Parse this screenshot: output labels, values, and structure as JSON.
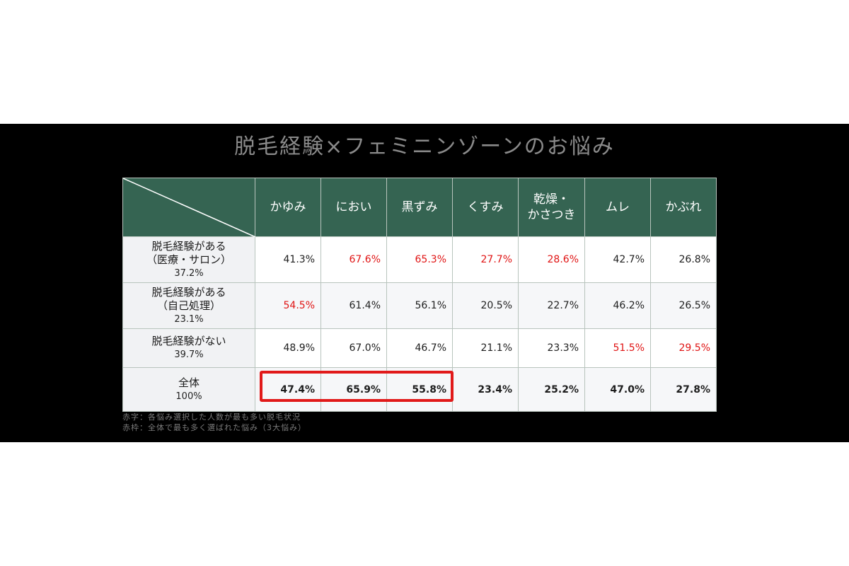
{
  "chart_data": {
    "type": "table",
    "title": "脱毛経験×フェミニンゾーンのお悩み",
    "columns": [
      "かゆみ",
      "におい",
      "黒ずみ",
      "くすみ",
      "乾燥・\nかさつき",
      "ムレ",
      "かぶれ"
    ],
    "rows": [
      {
        "label_lines": [
          "脱毛経験がある",
          "（医療・サロン）"
        ],
        "share": "37.2%",
        "values": [
          "41.3%",
          "67.6%",
          "65.3%",
          "27.7%",
          "28.6%",
          "42.7%",
          "26.8%"
        ],
        "highlight": [
          false,
          true,
          true,
          true,
          true,
          false,
          false
        ]
      },
      {
        "label_lines": [
          "脱毛経験がある",
          "（自己処理）"
        ],
        "share": "23.1%",
        "values": [
          "54.5%",
          "61.4%",
          "56.1%",
          "20.5%",
          "22.7%",
          "46.2%",
          "26.5%"
        ],
        "highlight": [
          true,
          false,
          false,
          false,
          false,
          false,
          false
        ]
      },
      {
        "label_lines": [
          "脱毛経験がない"
        ],
        "share": "39.7%",
        "values": [
          "48.9%",
          "67.0%",
          "46.7%",
          "21.1%",
          "23.3%",
          "51.5%",
          "29.5%"
        ],
        "highlight": [
          false,
          false,
          false,
          false,
          false,
          true,
          true
        ]
      },
      {
        "label_lines": [
          "全体"
        ],
        "share": "100%",
        "values": [
          "47.4%",
          "65.9%",
          "55.8%",
          "23.4%",
          "25.2%",
          "47.0%",
          "27.8%"
        ],
        "highlight": [
          false,
          false,
          false,
          false,
          false,
          false,
          false
        ]
      }
    ],
    "framed_row": 3,
    "framed_columns": [
      0,
      1,
      2
    ]
  },
  "notes": [
    "赤字：各悩み選択した人数が最も多い脱毛状況",
    "赤枠：全体で最も多く選ばれた悩み（3大悩み）"
  ],
  "colors": {
    "header_bg": "#356452",
    "highlight_text": "#e01414",
    "frame": "#e11a1a",
    "band": "#000000"
  }
}
